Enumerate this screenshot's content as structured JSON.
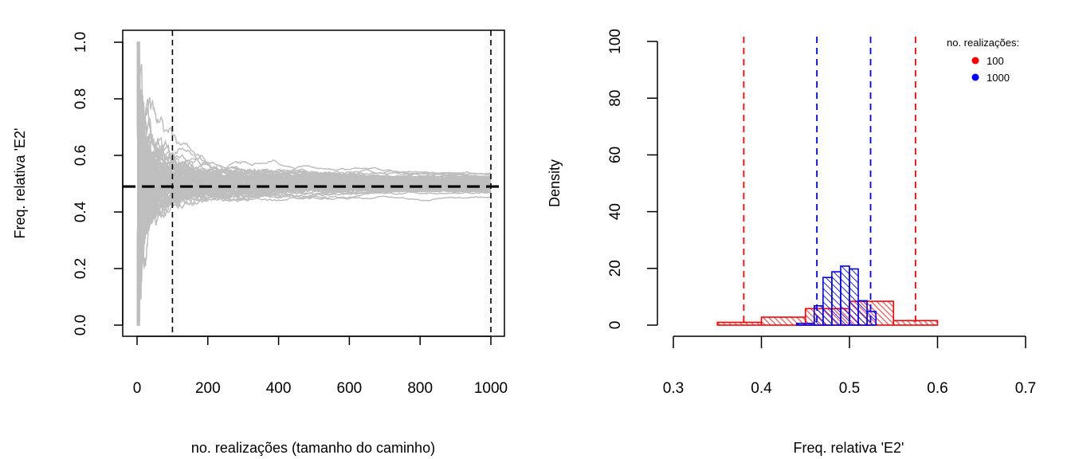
{
  "chart_data": [
    {
      "type": "line",
      "title": "",
      "xlabel": "no. realizações (tamanho do caminho)",
      "ylabel": "Freq. relativa 'E2'",
      "xlim": [
        -40,
        1040
      ],
      "ylim": [
        -0.04,
        1.04
      ],
      "xticks": [
        "0",
        "200",
        "400",
        "600",
        "800",
        "1000"
      ],
      "yticks": [
        "0.0",
        "0.2",
        "0.4",
        "0.6",
        "0.8",
        "1.0"
      ],
      "grid": false,
      "series_description": "many simulated random paths of running relative frequency (gray), converging to the true probability",
      "reference_line": {
        "y": 0.49,
        "style": "thick dashed black"
      },
      "vertical_lines": [
        {
          "x": 100,
          "style": "dashed black"
        },
        {
          "x": 1000,
          "style": "dashed black"
        }
      ],
      "path_color": "#bebebe"
    },
    {
      "type": "bar",
      "subtype": "histogram",
      "title": "",
      "xlabel": "Freq. relativa 'E2'",
      "ylabel": "Density",
      "xlim": [
        0.3,
        0.7
      ],
      "ylim": [
        0,
        100
      ],
      "xticks": [
        "0.3",
        "0.4",
        "0.5",
        "0.6",
        "0.7"
      ],
      "yticks": [
        "0",
        "20",
        "40",
        "60",
        "80",
        "100"
      ],
      "grid": false,
      "legend": {
        "title": "no. realizações:",
        "position": "top-right",
        "entries": [
          {
            "label": "100",
            "color": "#ff0000"
          },
          {
            "label": "1000",
            "color": "#0000ff"
          }
        ]
      },
      "series": [
        {
          "name": "100",
          "color": "#ff0000",
          "bins": [
            {
              "x0": 0.35,
              "x1": 0.4,
              "density": 1.0
            },
            {
              "x0": 0.4,
              "x1": 0.45,
              "density": 2.8
            },
            {
              "x0": 0.45,
              "x1": 0.5,
              "density": 5.8
            },
            {
              "x0": 0.5,
              "x1": 0.55,
              "density": 8.4
            },
            {
              "x0": 0.55,
              "x1": 0.6,
              "density": 1.6
            }
          ],
          "vlines": [
            0.38,
            0.575
          ]
        },
        {
          "name": "1000",
          "color": "#0000ff",
          "bins": [
            {
              "x0": 0.44,
              "x1": 0.46,
              "density": 0.6
            },
            {
              "x0": 0.46,
              "x1": 0.47,
              "density": 6.8
            },
            {
              "x0": 0.47,
              "x1": 0.48,
              "density": 16.8
            },
            {
              "x0": 0.48,
              "x1": 0.49,
              "density": 18.8
            },
            {
              "x0": 0.49,
              "x1": 0.5,
              "density": 20.8
            },
            {
              "x0": 0.5,
              "x1": 0.51,
              "density": 19.8
            },
            {
              "x0": 0.51,
              "x1": 0.52,
              "density": 8.6
            },
            {
              "x0": 0.52,
              "x1": 0.53,
              "density": 4.8
            }
          ],
          "vlines": [
            0.463,
            0.524
          ]
        }
      ]
    }
  ]
}
